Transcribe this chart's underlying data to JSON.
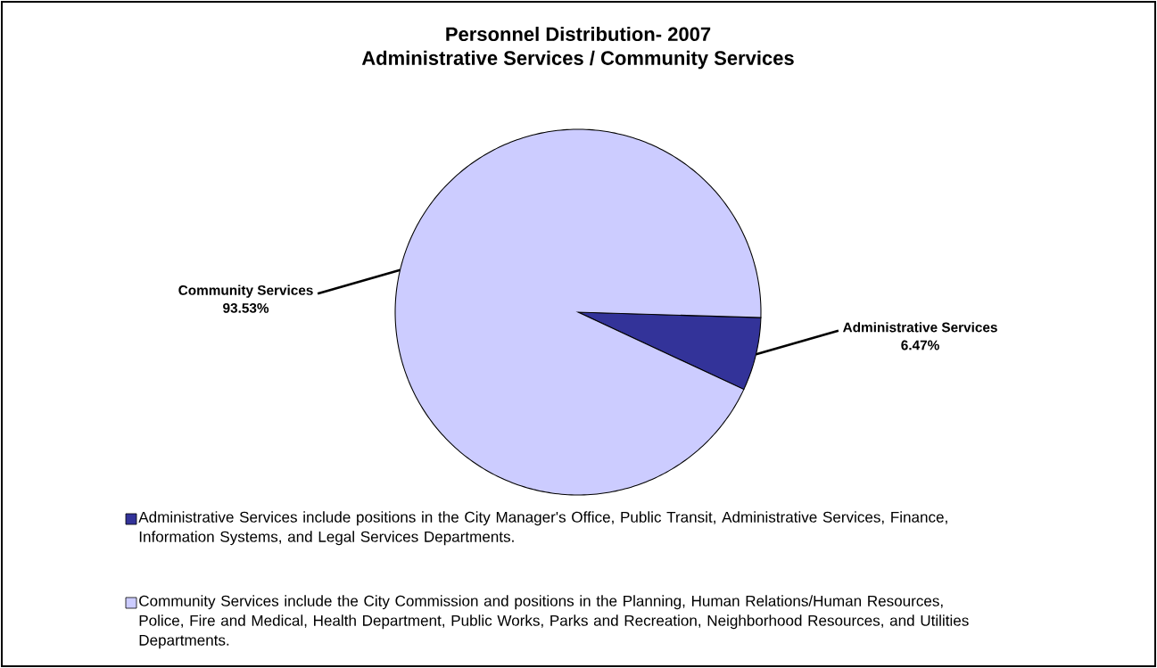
{
  "chart_data": {
    "type": "pie",
    "title": "Personnel Distribution-  2007",
    "subtitle": "Administrative Services / Community Services",
    "categories": [
      "Administrative Services",
      "Community Services"
    ],
    "values": [
      6.47,
      93.53
    ],
    "colors": [
      "#333399",
      "#ccccff"
    ],
    "value_labels": [
      "6.47%",
      "93.53%"
    ],
    "annotations": [
      "Administrative Services include positions in the City Manager's Office, Public Transit, Administrative Services, Finance, Information Systems, and Legal Services Departments.",
      "Community Services include the City Commission and positions in the Planning, Human Relations/Human Resources, Police, Fire and Medical, Health Department, Public Works, Parks and Recreation, Neighborhood Resources, and Utilities Departments."
    ]
  }
}
